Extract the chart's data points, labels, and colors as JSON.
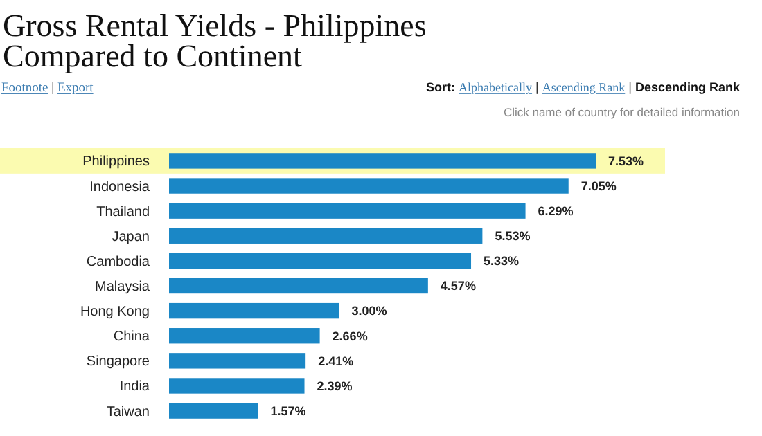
{
  "chart_data": {
    "type": "bar",
    "orientation": "horizontal",
    "title": "Gross Rental Yields - Philippines\nCompared to Continent",
    "annotations": [
      "Footnote  |  Export",
      "Sort: Alphabetically | Ascending Rank | Descending Rank",
      "Click name of country for detailed information"
    ],
    "categories": [
      "Philippines",
      "Indonesia",
      "Thailand",
      "Japan",
      "Cambodia",
      "Malaysia",
      "Hong Kong",
      "China",
      "Singapore",
      "India",
      "Taiwan"
    ],
    "values": [
      7.53,
      7.05,
      6.29,
      5.53,
      5.33,
      4.57,
      3.0,
      2.66,
      2.41,
      2.39,
      1.57
    ],
    "value_labels": [
      "7.53%",
      "7.05%",
      "6.29%",
      "5.53%",
      "5.33%",
      "4.57%",
      "3.00%",
      "2.66%",
      "2.41%",
      "2.39%",
      "1.57%"
    ],
    "color": "#1a87c6",
    "bands": [
      {
        "axis": "y",
        "from": "Philippines",
        "to": "Philippines",
        "color": "#fbfbb0"
      }
    ]
  }
}
